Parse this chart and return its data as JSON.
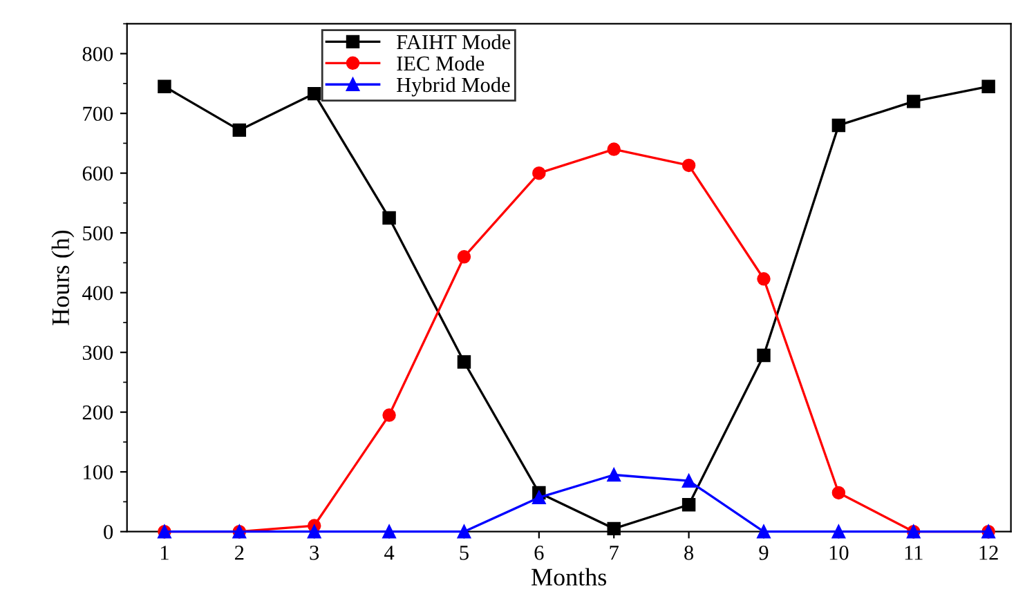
{
  "chart_data": {
    "type": "line",
    "xlabel": "Months",
    "ylabel": "Hours (h)",
    "x": [
      1,
      2,
      3,
      4,
      5,
      6,
      7,
      8,
      9,
      10,
      11,
      12
    ],
    "series": [
      {
        "name": "FAIHT Mode",
        "color": "#000000",
        "marker": "square",
        "values": [
          745,
          672,
          733,
          525,
          284,
          65,
          5,
          45,
          295,
          680,
          720,
          745
        ]
      },
      {
        "name": "IEC Mode",
        "color": "#ff0000",
        "marker": "circle",
        "values": [
          0,
          0,
          10,
          195,
          460,
          600,
          640,
          613,
          423,
          65,
          0,
          0
        ]
      },
      {
        "name": "Hybrid Mode",
        "color": "#0000ff",
        "marker": "triangle",
        "values": [
          0,
          0,
          0,
          0,
          0,
          57,
          95,
          85,
          0,
          0,
          0,
          0
        ]
      }
    ],
    "xlim": [
      0.5,
      12.3
    ],
    "xticks": [
      1,
      2,
      3,
      4,
      5,
      6,
      7,
      8,
      9,
      10,
      11,
      12
    ],
    "ylim": [
      0,
      850
    ],
    "yticks": [
      0,
      100,
      200,
      300,
      400,
      500,
      600,
      700,
      800
    ],
    "grid": false,
    "legend": "top",
    "line_style": "solid"
  }
}
